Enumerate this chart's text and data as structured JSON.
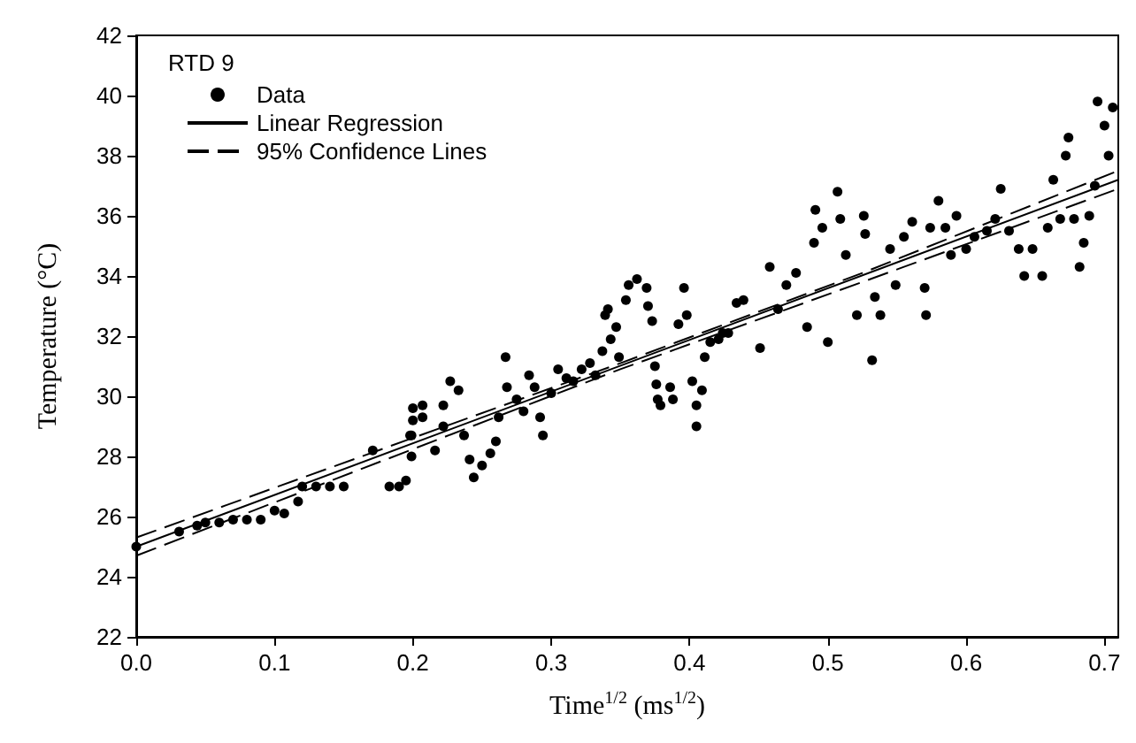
{
  "chart_data": {
    "type": "scatter",
    "xlabel": "Time$^{1/2}$ (ms$^{1/2}$)",
    "ylabel": "Temperature (°C)",
    "legend_title": "RTD 9",
    "xlim": [
      0,
      0.71
    ],
    "xticks": [
      {
        "value": 0,
        "label": "0.0"
      },
      0.1,
      0.2,
      0.3,
      0.4,
      0.5,
      0.6,
      0.7
    ],
    "ylim": [
      22,
      42
    ],
    "yticks": [
      22,
      24,
      26,
      28,
      30,
      32,
      34,
      36,
      38,
      40,
      42
    ],
    "grid": false,
    "legend": "top left",
    "series": [
      {
        "name": "Data",
        "marker": "circle",
        "color": "#000000",
        "x": [
          0,
          0.031,
          0.044,
          0.05,
          0.06,
          0.07,
          0.08,
          0.09,
          0.1,
          0.107,
          0.117,
          0.12,
          0.13,
          0.14,
          0.15,
          0.171,
          0.183,
          0.19,
          0.195,
          0.198,
          0.2,
          0.2,
          0.199,
          0.199,
          0.207,
          0.207,
          0.216,
          0.222,
          0.222,
          0.227,
          0.233,
          0.237,
          0.241,
          0.244,
          0.25,
          0.256,
          0.26,
          0.262,
          0.267,
          0.268,
          0.275,
          0.28,
          0.284,
          0.288,
          0.292,
          0.294,
          0.3,
          0.305,
          0.311,
          0.316,
          0.322,
          0.328,
          0.332,
          0.337,
          0.339,
          0.341,
          0.343,
          0.347,
          0.349,
          0.354,
          0.356,
          0.362,
          0.369,
          0.37,
          0.373,
          0.375,
          0.376,
          0.377,
          0.379,
          0.386,
          0.388,
          0.392,
          0.396,
          0.398,
          0.402,
          0.405,
          0.405,
          0.409,
          0.411,
          0.415,
          0.421,
          0.424,
          0.428,
          0.434,
          0.439,
          0.451,
          0.458,
          0.464,
          0.47,
          0.477,
          0.485,
          0.49,
          0.491,
          0.496,
          0.5,
          0.507,
          0.509,
          0.513,
          0.521,
          0.526,
          0.527,
          0.532,
          0.534,
          0.538,
          0.545,
          0.549,
          0.555,
          0.561,
          0.57,
          0.571,
          0.574,
          0.58,
          0.585,
          0.589,
          0.593,
          0.6,
          0.606,
          0.615,
          0.621,
          0.625,
          0.631,
          0.638,
          0.642,
          0.648,
          0.655,
          0.659,
          0.663,
          0.668,
          0.672,
          0.674,
          0.678,
          0.682,
          0.685,
          0.689,
          0.693,
          0.695,
          0.7,
          0.703,
          0.706
        ],
        "values": [
          25.0,
          25.5,
          25.7,
          25.8,
          25.8,
          25.9,
          25.9,
          25.9,
          26.2,
          26.1,
          26.5,
          27.0,
          27.0,
          27.0,
          27.0,
          28.2,
          27.0,
          27.0,
          27.2,
          28.7,
          29.2,
          29.6,
          28.0,
          28.7,
          29.7,
          29.3,
          28.2,
          29.7,
          29.0,
          30.5,
          30.2,
          28.7,
          27.9,
          27.3,
          27.7,
          28.1,
          28.5,
          29.3,
          31.3,
          30.3,
          29.9,
          29.5,
          30.7,
          30.3,
          29.3,
          28.7,
          30.1,
          30.9,
          30.6,
          30.5,
          30.9,
          31.1,
          30.7,
          31.5,
          32.7,
          32.9,
          31.9,
          32.3,
          31.3,
          33.2,
          33.7,
          33.9,
          33.6,
          33.0,
          32.5,
          31.0,
          30.4,
          29.9,
          29.7,
          30.3,
          29.9,
          32.4,
          33.6,
          32.7,
          30.5,
          29.7,
          29.0,
          30.2,
          31.3,
          31.8,
          31.9,
          32.1,
          32.1,
          33.1,
          33.2,
          31.6,
          34.3,
          32.9,
          33.7,
          34.1,
          32.3,
          35.1,
          36.2,
          35.6,
          31.8,
          36.8,
          35.9,
          34.7,
          32.7,
          36.0,
          35.4,
          31.2,
          33.3,
          32.7,
          34.9,
          33.7,
          35.3,
          35.8,
          33.6,
          32.7,
          35.6,
          36.5,
          35.6,
          34.7,
          36.0,
          34.9,
          35.3,
          35.5,
          35.9,
          36.9,
          35.5,
          34.9,
          34.0,
          34.9,
          34.0,
          35.6,
          37.2,
          35.9,
          38.0,
          38.6,
          35.9,
          34.3,
          35.1,
          36.0,
          37.0,
          39.8,
          39.0,
          38.0,
          39.6
        ]
      },
      {
        "name": "Linear Regression",
        "type": "line",
        "marker": "none",
        "line_style": "solid",
        "color": "#000000",
        "x": [
          0,
          0.71
        ],
        "values": [
          25.0,
          37.2
        ]
      },
      {
        "name": "95% Confidence Lines",
        "type": "line",
        "marker": "none",
        "line_style": "dashed",
        "color": "#000000",
        "x": [
          0,
          0.175,
          0.35,
          0.525,
          0.71
        ],
        "values": [
          25.3,
          28.2,
          31.1,
          34.1,
          37.5
        ]
      },
      {
        "type": "line",
        "marker": "none",
        "line_style": "dashed",
        "color": "#000000",
        "x": [
          0,
          0.175,
          0.35,
          0.525,
          0.71
        ],
        "values": [
          24.7,
          27.8,
          30.9,
          33.8,
          36.9
        ]
      }
    ]
  }
}
